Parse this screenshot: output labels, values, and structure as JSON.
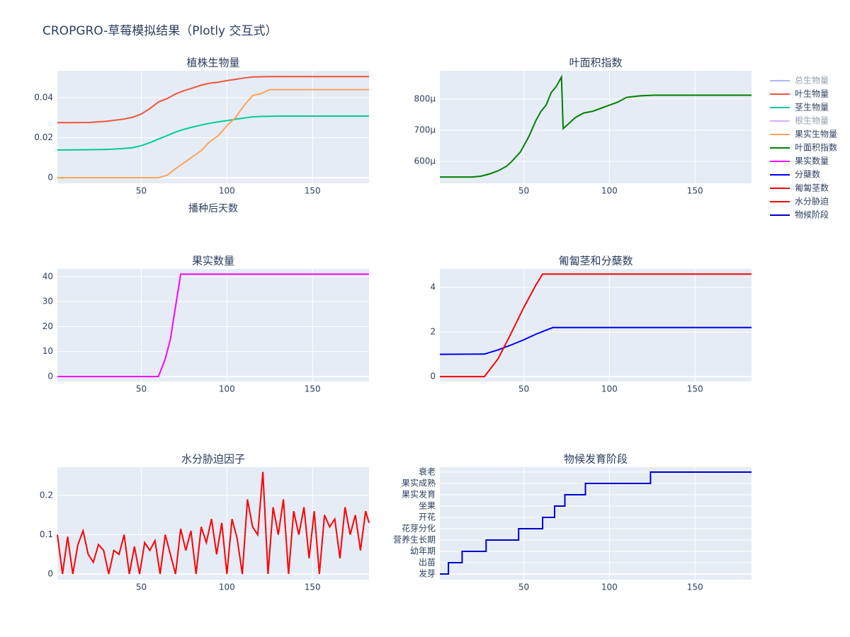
{
  "title": "CROPGRO-草莓模拟结果（Plotly 交互式）",
  "chart_data": [
    {
      "type": "line",
      "title": "植株生物量",
      "x_label": "播种后天数",
      "x": [
        1,
        10,
        20,
        30,
        40,
        45,
        50,
        55,
        60,
        65,
        70,
        75,
        80,
        85,
        90,
        95,
        100,
        105,
        110,
        115,
        120,
        125,
        130,
        140,
        150,
        160,
        170,
        183
      ],
      "xlim": [
        1,
        183
      ],
      "xticks": [
        50,
        100,
        150
      ],
      "ylim": [
        -0.0028,
        0.0534
      ],
      "yticks": [
        0,
        0.02,
        0.04
      ],
      "grid": true,
      "series": [
        {
          "name": "总生物量",
          "color": "#636efa",
          "visible": false
        },
        {
          "name": "叶生物量",
          "color": "#ef553b",
          "values": [
            0.0275,
            0.0275,
            0.0276,
            0.0282,
            0.0293,
            0.0302,
            0.0318,
            0.0345,
            0.0378,
            0.0395,
            0.0418,
            0.0435,
            0.0448,
            0.0462,
            0.0472,
            0.0477,
            0.0485,
            0.0491,
            0.0498,
            0.0503,
            0.0504,
            0.0505,
            0.0505,
            0.0505,
            0.0505,
            0.0505,
            0.0505,
            0.0505
          ]
        },
        {
          "name": "茎生物量",
          "color": "#00cc96",
          "values": [
            0.0138,
            0.0139,
            0.014,
            0.0141,
            0.0146,
            0.015,
            0.016,
            0.0175,
            0.0193,
            0.021,
            0.0228,
            0.0242,
            0.0253,
            0.0263,
            0.0272,
            0.0279,
            0.0285,
            0.0292,
            0.0298,
            0.0304,
            0.0306,
            0.0307,
            0.0308,
            0.0308,
            0.0308,
            0.0308,
            0.0308,
            0.0308
          ]
        },
        {
          "name": "根生物量",
          "color": "#ab63fa",
          "visible": false
        },
        {
          "name": "果实生物量",
          "color": "#ffa15a",
          "values": [
            0,
            0,
            0,
            0,
            0,
            0,
            0,
            0,
            0,
            0.0012,
            0.0045,
            0.0075,
            0.0105,
            0.0135,
            0.018,
            0.021,
            0.026,
            0.03,
            0.036,
            0.041,
            0.042,
            0.044,
            0.044,
            0.044,
            0.044,
            0.044,
            0.044,
            0.044
          ]
        }
      ]
    },
    {
      "type": "line",
      "title": "叶面积指数",
      "x": [
        1,
        20,
        25,
        30,
        35,
        40,
        43,
        48,
        53,
        57,
        60,
        63,
        66,
        69,
        72,
        73,
        76,
        80,
        85,
        90,
        95,
        100,
        105,
        110,
        118,
        126,
        183
      ],
      "xlim": [
        1,
        183
      ],
      "xticks": [
        50,
        100,
        150
      ],
      "ylim": [
        0.00053,
        0.00089
      ],
      "yticks": [
        {
          "value": 0.0006,
          "label": "600μ"
        },
        {
          "value": 0.0007,
          "label": "700μ"
        },
        {
          "value": 0.0008,
          "label": "800μ"
        }
      ],
      "grid": true,
      "series": [
        {
          "name": "叶面积指数",
          "color": "#008000",
          "values": [
            0.00055,
            0.00055,
            0.000553,
            0.00056,
            0.00057,
            0.000585,
            0.0006,
            0.00063,
            0.00068,
            0.00073,
            0.00076,
            0.00078,
            0.00082,
            0.00084,
            0.00087,
            0.000705,
            0.00072,
            0.00074,
            0.000755,
            0.00076,
            0.00077,
            0.00078,
            0.00079,
            0.000805,
            0.00081,
            0.000812,
            0.000812
          ]
        }
      ]
    },
    {
      "type": "line",
      "title": "果实数量",
      "x": [
        1,
        60,
        64,
        67,
        73,
        183
      ],
      "xlim": [
        1,
        183
      ],
      "xticks": [
        50,
        100,
        150
      ],
      "ylim": [
        -2,
        43.1
      ],
      "yticks": [
        0,
        10,
        20,
        30,
        40
      ],
      "grid": true,
      "series": [
        {
          "name": "果实数量",
          "color": "#ff00ff",
          "values": [
            0,
            0,
            7,
            15,
            41,
            41
          ]
        }
      ]
    },
    {
      "type": "line",
      "title": "匍匐茎和分蘖数",
      "x": [
        1,
        27,
        35,
        42,
        50,
        57,
        61,
        67,
        183
      ],
      "xlim": [
        1,
        183
      ],
      "xticks": [
        50,
        100,
        150
      ],
      "ylim": [
        -0.22,
        4.83
      ],
      "yticks": [
        0,
        2,
        4
      ],
      "grid": true,
      "series": [
        {
          "name": "分蘖数",
          "color": "#0000ff",
          "values": [
            1,
            1.01,
            1.2,
            1.4,
            1.65,
            1.9,
            2.02,
            2.2,
            2.2
          ]
        },
        {
          "name": "匍匐茎数",
          "color": "#ff0000",
          "values": [
            0,
            0,
            0.8,
            1.85,
            3.1,
            4.1,
            4.6,
            4.6,
            4.6
          ]
        }
      ]
    },
    {
      "type": "line",
      "title": "水分胁迫因子",
      "x": [
        1,
        4,
        7,
        10,
        13,
        16,
        19,
        22,
        25,
        28,
        31,
        34,
        37,
        40,
        43,
        46,
        49,
        52,
        55,
        58,
        61,
        64,
        67,
        70,
        73,
        76,
        79,
        82,
        85,
        88,
        91,
        94,
        97,
        100,
        103,
        106,
        109,
        112,
        115,
        118,
        121,
        124,
        127,
        130,
        133,
        136,
        139,
        142,
        145,
        148,
        151,
        154,
        157,
        160,
        163,
        166,
        169,
        172,
        175,
        178,
        181,
        183
      ],
      "xlim": [
        1,
        183
      ],
      "xticks": [
        50,
        100,
        150
      ],
      "ylim": [
        -0.0144,
        0.272
      ],
      "yticks": [
        0,
        0.1,
        0.2
      ],
      "grid": true,
      "series": [
        {
          "name": "水分胁迫",
          "color": "#ff0000",
          "values": [
            0.1,
            0,
            0.095,
            0,
            0.075,
            0.11,
            0.05,
            0.03,
            0.075,
            0.06,
            0,
            0.06,
            0.05,
            0.1,
            0,
            0.07,
            0,
            0.08,
            0.06,
            0.085,
            0,
            0.1,
            0.05,
            0,
            0.115,
            0.06,
            0.11,
            0,
            0.12,
            0.08,
            0.14,
            0.05,
            0.13,
            0,
            0.14,
            0.09,
            0,
            0.19,
            0.12,
            0.1,
            0.26,
            0,
            0.17,
            0.1,
            0.19,
            0,
            0.16,
            0.1,
            0.17,
            0.04,
            0.16,
            0,
            0.15,
            0.12,
            0.14,
            0.04,
            0.17,
            0.1,
            0.15,
            0.06,
            0.16,
            0.13
          ]
        }
      ]
    },
    {
      "type": "line",
      "title": "物候发育阶段",
      "line_shape": "hv",
      "x": [
        1,
        6,
        14,
        28,
        47,
        61,
        68,
        74,
        86,
        124,
        183
      ],
      "xlim": [
        1,
        183
      ],
      "xticks": [
        50,
        100,
        150
      ],
      "ylim": [
        -0.5,
        9.44
      ],
      "yticks": [
        {
          "value": 0,
          "label": "发芽"
        },
        {
          "value": 1,
          "label": "出苗"
        },
        {
          "value": 2,
          "label": "幼年期"
        },
        {
          "value": 3,
          "label": "营养生长期"
        },
        {
          "value": 4,
          "label": "花芽分化"
        },
        {
          "value": 5,
          "label": "开花"
        },
        {
          "value": 6,
          "label": "坐果"
        },
        {
          "value": 7,
          "label": "果实发育"
        },
        {
          "value": 8,
          "label": "果实成熟"
        },
        {
          "value": 9,
          "label": "衰老"
        }
      ],
      "grid": true,
      "series": [
        {
          "name": "物候阶段",
          "color": "#0000cc",
          "values": [
            0,
            1,
            2,
            3,
            4,
            5,
            6,
            7,
            8,
            9,
            9
          ]
        }
      ]
    }
  ]
}
